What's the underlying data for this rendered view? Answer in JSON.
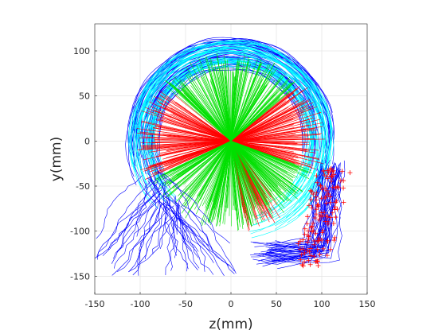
{
  "chart_data": {
    "type": "line",
    "xlabel": "z(mm)",
    "ylabel": "y(mm)",
    "xlim": [
      -150,
      150
    ],
    "ylim": [
      -170,
      130
    ],
    "xticks": [
      -150,
      -100,
      -50,
      0,
      50,
      100,
      150
    ],
    "yticks": [
      -150,
      -100,
      -50,
      0,
      50,
      100
    ],
    "grid": true,
    "box": true,
    "center": [
      0,
      0
    ],
    "circle": {
      "center": [
        0,
        0
      ],
      "radius_range": [
        80,
        112
      ]
    },
    "colors": {
      "ray_red": "#ff0000",
      "ray_green": "#00e000",
      "ring_blue": "#0000ff",
      "ring_cyan": "#00ffff",
      "marker_red": "#ff0000",
      "grid": "#dedede",
      "axis": "#262626"
    },
    "series": [
      {
        "color": "ring_blue",
        "kind": "outer-ring-tracks",
        "angle_range_deg": [
          -25,
          220
        ],
        "radius_range": [
          80,
          115
        ]
      },
      {
        "color": "ring_cyan",
        "kind": "ring-tracks",
        "angle_range_deg": [
          -80,
          230
        ],
        "radius_range": [
          80,
          112
        ]
      },
      {
        "color": "ray_red",
        "kind": "radial-rays",
        "angle_sectors_deg": [
          [
            -20,
            40
          ],
          [
            140,
            205
          ],
          [
            -80,
            -50
          ]
        ],
        "length_range": [
          70,
          105
        ]
      },
      {
        "color": "ray_green",
        "kind": "radial-rays",
        "angle_sectors_deg": [
          [
            40,
            140
          ],
          [
            205,
            260
          ],
          [
            -110,
            -20
          ]
        ],
        "length_range": [
          70,
          100
        ]
      },
      {
        "color": "ring_blue",
        "kind": "exit-tracks-left",
        "x_range": [
          -150,
          -45
        ],
        "y_range": [
          -150,
          -40
        ]
      },
      {
        "color": "ring_blue",
        "kind": "exit-tracks-right",
        "x_range": [
          20,
          140
        ],
        "y_range": [
          -155,
          -20
        ]
      },
      {
        "color": "marker_red",
        "kind": "plus-markers",
        "x_range": [
          80,
          140
        ],
        "y_range": [
          -140,
          -30
        ]
      }
    ]
  }
}
